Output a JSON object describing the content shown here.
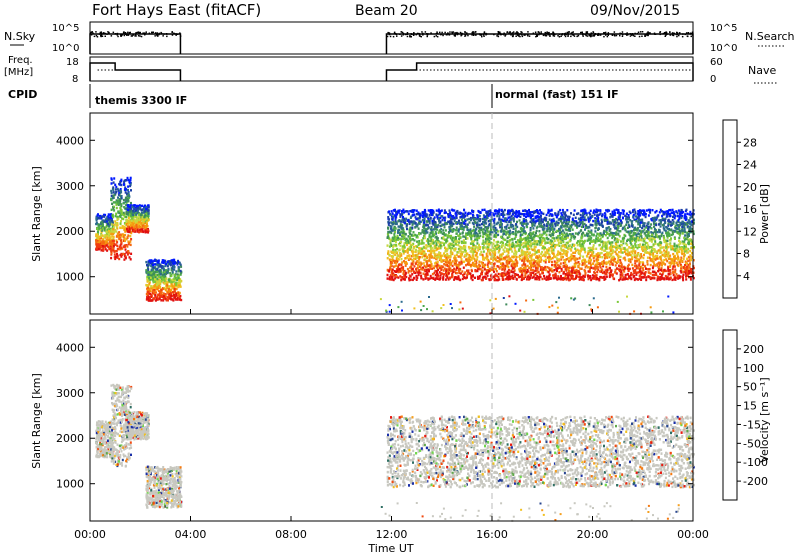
{
  "header": {
    "title": "Fort Hays East (fitACF)",
    "beam": "Beam 20",
    "date": "09/Nov/2015"
  },
  "top_panels": {
    "nsky_label": "N.Sky",
    "nsky_ticks": [
      "10^5",
      "10^0"
    ],
    "nsearch_label": "N.Search",
    "nsearch_ticks": [
      "10^5",
      "10^0"
    ],
    "freq_label_1": "Freq.",
    "freq_label_2": "[MHz]",
    "freq_ticks": [
      "18",
      "8"
    ],
    "nave_label": "Nave",
    "nave_ticks": [
      "60",
      "0"
    ],
    "cpid_label": "CPID",
    "cpid_modes": [
      {
        "label": "themis 3300 IF",
        "start_hour": 0
      },
      {
        "label": "normal (fast) 151 IF",
        "start_hour": 16
      }
    ]
  },
  "time_axis": {
    "label": "Time UT",
    "ticks": [
      "00:00",
      "04:00",
      "08:00",
      "12:00",
      "16:00",
      "20:00",
      "00:00"
    ],
    "tick_hours": [
      0,
      4,
      8,
      12,
      16,
      20,
      24
    ],
    "range_hours": [
      0,
      24
    ]
  },
  "colorbars": {
    "power": {
      "title": "Power [dB]",
      "ticks": [
        "28",
        "24",
        "20",
        "16",
        "12",
        "8",
        "4"
      ],
      "colors": [
        "#0018ff",
        "#1c3fa6",
        "#2c6b8e",
        "#3e8a5a",
        "#4aa84a",
        "#7cc838",
        "#c8d840",
        "#f0c020",
        "#f59a10",
        "#f56a10",
        "#f03a10",
        "#e01010"
      ]
    },
    "velocity": {
      "title": "Velocity [m s⁻¹]",
      "ticks": [
        "200",
        "100",
        "50",
        "15",
        "-15",
        "-50",
        "-100",
        "-200"
      ],
      "colors": [
        "#1a2fa8",
        "#28468f",
        "#2e6e62",
        "#5fa84a",
        "#6fd84a",
        "#c8c8c0",
        "#c8c8c0",
        "#f0c020",
        "#f5a020",
        "#f57a10",
        "#f04a10",
        "#e81a10"
      ]
    }
  },
  "chart_data": [
    {
      "type": "heatmap",
      "title": "Power",
      "xlabel": "Time UT",
      "ylabel": "Slant Range [km]",
      "xlim_hours": [
        0,
        24
      ],
      "ylim_km": [
        180,
        4600
      ],
      "yticks": [
        1000,
        2000,
        3000,
        4000
      ],
      "colorbar_label": "Power [dB]",
      "colorbar_range": [
        0,
        30
      ],
      "echo_regions": [
        {
          "t0": 0.2,
          "t1": 0.9,
          "r0": 1600,
          "r1": 2400
        },
        {
          "t0": 0.8,
          "t1": 1.6,
          "r0": 1400,
          "r1": 3200
        },
        {
          "t0": 1.4,
          "t1": 2.3,
          "r0": 2000,
          "r1": 2600
        },
        {
          "t0": 2.2,
          "t1": 3.6,
          "r0": 500,
          "r1": 1400
        },
        {
          "t0": 11.8,
          "t1": 24.0,
          "r0": 950,
          "r1": 2500
        }
      ]
    },
    {
      "type": "heatmap",
      "title": "Velocity",
      "xlabel": "Time UT",
      "ylabel": "Slant Range [km]",
      "xlim_hours": [
        0,
        24
      ],
      "ylim_km": [
        180,
        4600
      ],
      "yticks": [
        1000,
        2000,
        3000,
        4000
      ],
      "colorbar_label": "Velocity [m s⁻¹]",
      "colorbar_range": [
        -250,
        250
      ],
      "dominant_value": "-15 to 15",
      "echo_regions": [
        {
          "t0": 0.2,
          "t1": 0.9,
          "r0": 1600,
          "r1": 2400
        },
        {
          "t0": 0.8,
          "t1": 1.6,
          "r0": 1400,
          "r1": 3200
        },
        {
          "t0": 1.4,
          "t1": 2.3,
          "r0": 2000,
          "r1": 2600
        },
        {
          "t0": 2.2,
          "t1": 3.6,
          "r0": 500,
          "r1": 1400
        },
        {
          "t0": 11.8,
          "t1": 24.0,
          "r0": 950,
          "r1": 2500
        }
      ]
    }
  ]
}
